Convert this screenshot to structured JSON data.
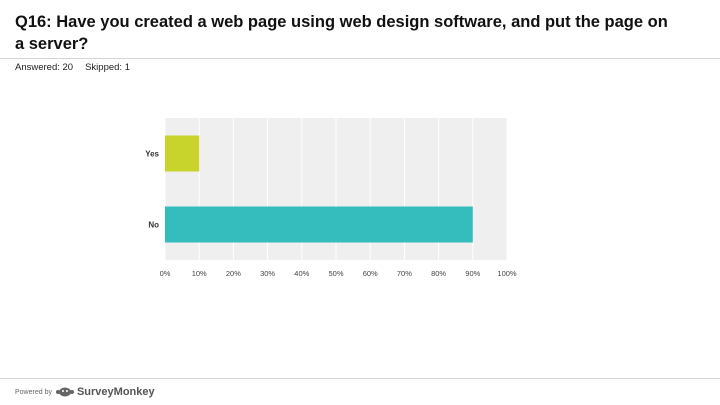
{
  "question": {
    "title": "Q16: Have you created a web page using web design software, and put the page on a server?",
    "answered_label": "Answered: 20",
    "skipped_label": "Skipped: 1"
  },
  "chart_data": {
    "type": "bar",
    "orientation": "horizontal",
    "categories": [
      "Yes",
      "No"
    ],
    "values": [
      10,
      90
    ],
    "value_unit": "%",
    "x_ticks": [
      "0%",
      "10%",
      "20%",
      "30%",
      "40%",
      "50%",
      "60%",
      "70%",
      "80%",
      "90%",
      "100%"
    ],
    "xlim": [
      0,
      100
    ],
    "bar_colors": [
      "#c8d32c",
      "#35bdbe"
    ],
    "grid": true
  },
  "footer": {
    "powered_by": "Powered by",
    "brand": "SurveyMonkey",
    "logo_icon": "surveymonkey-logo-icon"
  }
}
